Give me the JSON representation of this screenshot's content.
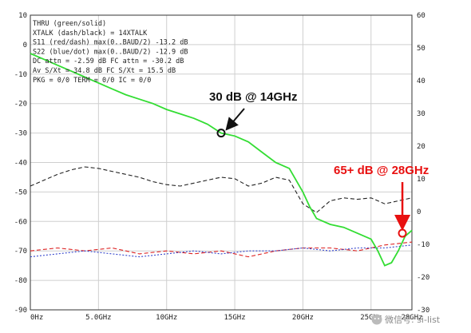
{
  "chart_data": {
    "type": "line",
    "title": "",
    "xlabel": "",
    "ylabel": "",
    "x_ticks": [
      "0Hz",
      "5.0GHz",
      "10GHz",
      "15GHz",
      "20GHz",
      "25GHz",
      "28GHz"
    ],
    "x_tick_values": [
      0,
      5,
      10,
      15,
      20,
      25,
      28
    ],
    "xlim": [
      0,
      28
    ],
    "left_axis": {
      "ylim": [
        -90,
        10
      ],
      "ticks": [
        "10",
        "0",
        "-10",
        "-20",
        "-30",
        "-40",
        "-50",
        "-60",
        "-70",
        "-80",
        "-90"
      ],
      "tick_values": [
        10,
        0,
        -10,
        -20,
        -30,
        -40,
        -50,
        -60,
        -70,
        -80,
        -90
      ]
    },
    "right_axis": {
      "ylim": [
        -30,
        60
      ],
      "ticks": [
        "60",
        "50",
        "40",
        "30",
        "20",
        "10",
        "0",
        "-10",
        "-20",
        "-30"
      ],
      "tick_values": [
        60,
        50,
        40,
        30,
        20,
        10,
        0,
        -10,
        -20,
        -30
      ]
    },
    "grid": true,
    "info_lines": [
      "THRU (green/solid)",
      "XTALK (dash/black) = 14XTALK",
      "S11 (red/dash) max(0..BAUD/2) -13.2 dB",
      "S22 (blue/dot) max(0..BAUD/2) -12.9 dB",
      "DC attn = -2.59 dB  FC attn = -30.2 dB",
      "Av S/Xt = 34.8 dB  FC S/Xt = 15.5 dB",
      "PKG = 0/0  TERM = 0/0  IC = 0/0"
    ],
    "series": [
      {
        "name": "THRU",
        "color": "#33dd33",
        "style": "solid",
        "axis": "left",
        "x": [
          0,
          1,
          2,
          3,
          4,
          5,
          6,
          7,
          8,
          9,
          10,
          11,
          12,
          13,
          14,
          15,
          16,
          17,
          18,
          19,
          20,
          20.5,
          21,
          22,
          23,
          24,
          25,
          25.5,
          26,
          26.5,
          27,
          27.5,
          28
        ],
        "y": [
          -3,
          -5,
          -7,
          -9,
          -11,
          -13,
          -15,
          -17,
          -18.5,
          -20,
          -22,
          -23.5,
          -25,
          -27,
          -30,
          -31,
          -33,
          -36.5,
          -40,
          -42,
          -50,
          -55,
          -59,
          -61,
          -62,
          -64,
          -66,
          -70,
          -75,
          -74,
          -70,
          -65,
          -63
        ]
      },
      {
        "name": "XTALK",
        "color": "#222222",
        "style": "dash",
        "axis": "left",
        "x": [
          0,
          1,
          2,
          3,
          4,
          5,
          6,
          7,
          8,
          9,
          10,
          11,
          12,
          13,
          14,
          15,
          16,
          17,
          18,
          19,
          20,
          21,
          22,
          23,
          24,
          25,
          26,
          27,
          28
        ],
        "y": [
          -48,
          -46,
          -44,
          -42.5,
          -41.5,
          -42,
          -43,
          -44,
          -45,
          -46.5,
          -47.5,
          -48,
          -47,
          -46,
          -45,
          -45.5,
          -48,
          -47,
          -45,
          -46,
          -54,
          -57,
          -53,
          -52,
          -52.5,
          -52,
          -54,
          -53,
          -52
        ]
      },
      {
        "name": "S11",
        "color": "#dd2222",
        "style": "dash",
        "axis": "left",
        "x": [
          0,
          2,
          4,
          6,
          8,
          10,
          12,
          14,
          16,
          18,
          20,
          22,
          24,
          26,
          28
        ],
        "y": [
          -70,
          -69,
          -70,
          -69,
          -71,
          -70,
          -71,
          -70,
          -72,
          -70,
          -69,
          -69,
          -70,
          -68,
          -67
        ]
      },
      {
        "name": "S22",
        "color": "#3344cc",
        "style": "dot",
        "axis": "left",
        "x": [
          0,
          2,
          4,
          6,
          8,
          10,
          12,
          14,
          16,
          18,
          20,
          22,
          24,
          26,
          28
        ],
        "y": [
          -72,
          -71,
          -70,
          -71,
          -72,
          -71,
          -70,
          -71,
          -70,
          -70,
          -69,
          -70,
          -69,
          -69,
          -68
        ]
      }
    ],
    "annotations": [
      {
        "text": "30 dB @ 14GHz",
        "x": 14,
        "y": -30,
        "color": "#111111"
      },
      {
        "text": "65+ dB @ 28GHz",
        "x": 27.3,
        "y": -64,
        "color": "#e81010"
      }
    ]
  },
  "watermark": {
    "icon": "wechat-icon",
    "text": "微信号: si-list"
  }
}
